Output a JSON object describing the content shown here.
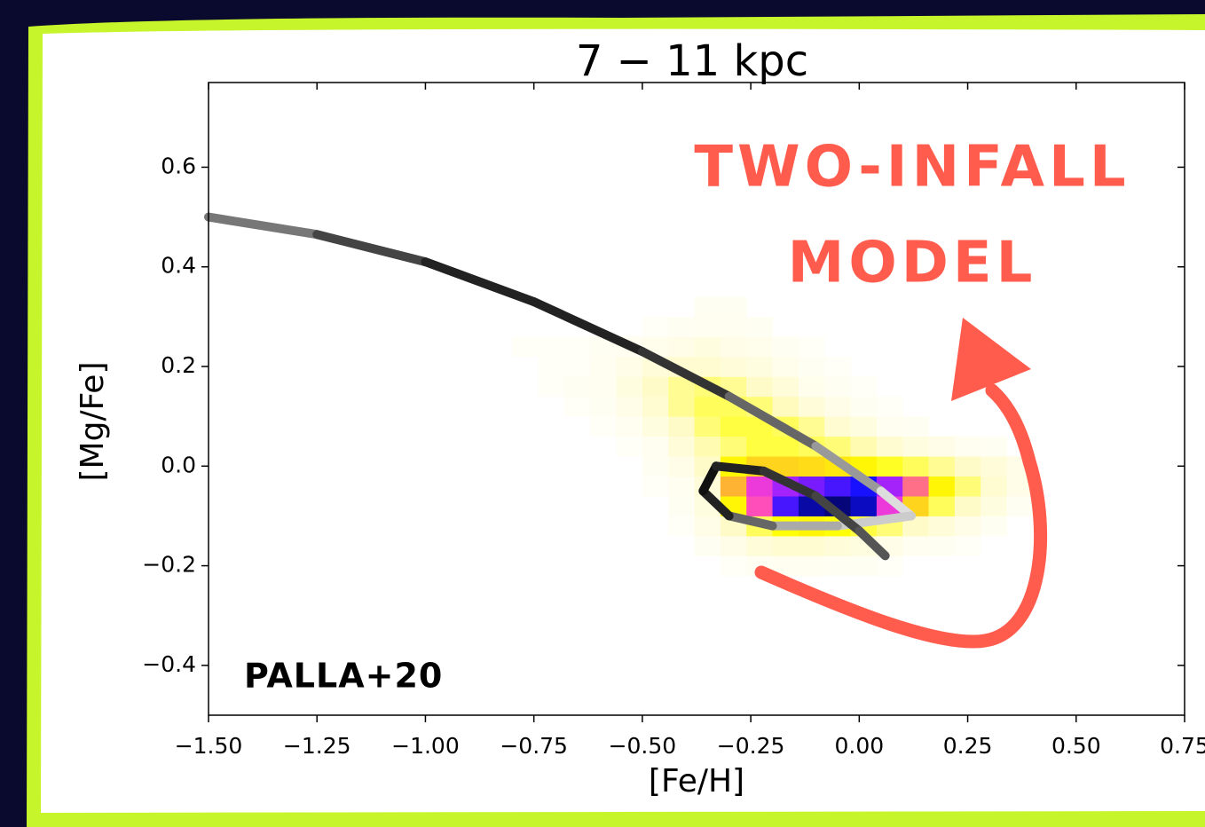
{
  "chart_data": [
    {
      "type": "heatmap",
      "title": "7 − 11 kpc",
      "xlabel": "[Fe/H]",
      "ylabel": "[Mg/Fe]",
      "xlim": [
        -1.5,
        0.75
      ],
      "ylim": [
        -0.5,
        0.77
      ],
      "xticks": [
        {
          "value": -1.5,
          "label": "−1.50"
        },
        {
          "value": -1.25,
          "label": "−1.25"
        },
        {
          "value": -1.0,
          "label": "−1.00"
        },
        {
          "value": -0.75,
          "label": "−0.75"
        },
        {
          "value": -0.5,
          "label": "−0.50"
        },
        {
          "value": -0.25,
          "label": "−0.25"
        },
        {
          "value": 0,
          "label": "0.00"
        },
        {
          "value": 0.25,
          "label": "0.25"
        },
        {
          "value": 0.5,
          "label": "0.50"
        },
        {
          "value": 0.75,
          "label": "0.75"
        }
      ],
      "yticks": [
        {
          "value": -0.4,
          "label": "−0.4"
        },
        {
          "value": -0.2,
          "label": "−0.2"
        },
        {
          "value": 0,
          "label": "0.0"
        },
        0.2,
        0.4,
        0.6
      ],
      "xbins": [
        -0.8,
        -0.74,
        -0.68,
        -0.62,
        -0.56,
        -0.5,
        -0.44,
        -0.38,
        -0.32,
        -0.26,
        -0.2,
        -0.14,
        -0.08,
        -0.02,
        0.04,
        0.1,
        0.16,
        0.22,
        0.28,
        0.34,
        0.4
      ],
      "ybins": [
        -0.22,
        -0.18,
        -0.14,
        -0.1,
        -0.06,
        -0.02,
        0.02,
        0.06,
        0.1,
        0.14,
        0.18,
        0.22,
        0.26,
        0.3,
        0.34
      ],
      "counts": [
        [
          0,
          0,
          0,
          0,
          0,
          0,
          0,
          0,
          2,
          3,
          4,
          4,
          3,
          3,
          2,
          0,
          0,
          0,
          0,
          0
        ],
        [
          0,
          0,
          0,
          0,
          0,
          0,
          0,
          3,
          6,
          10,
          12,
          12,
          10,
          8,
          6,
          4,
          3,
          2,
          0,
          0
        ],
        [
          0,
          0,
          0,
          0,
          0,
          0,
          2,
          6,
          14,
          22,
          28,
          30,
          28,
          24,
          20,
          14,
          10,
          6,
          3,
          0
        ],
        [
          0,
          0,
          0,
          0,
          0,
          0,
          3,
          8,
          30,
          55,
          80,
          92,
          95,
          90,
          60,
          35,
          22,
          14,
          8,
          3
        ],
        [
          0,
          0,
          0,
          0,
          0,
          2,
          4,
          10,
          40,
          60,
          70,
          75,
          80,
          85,
          70,
          50,
          30,
          20,
          12,
          6
        ],
        [
          0,
          0,
          0,
          0,
          0,
          3,
          6,
          14,
          30,
          35,
          35,
          34,
          32,
          30,
          26,
          22,
          18,
          14,
          10,
          6
        ],
        [
          0,
          0,
          0,
          0,
          2,
          4,
          10,
          16,
          20,
          24,
          24,
          22,
          20,
          16,
          12,
          8,
          6,
          4,
          3,
          0
        ],
        [
          0,
          0,
          0,
          2,
          4,
          8,
          14,
          20,
          24,
          24,
          22,
          18,
          12,
          8,
          4,
          3,
          0,
          0,
          0,
          0
        ],
        [
          0,
          0,
          2,
          3,
          6,
          12,
          18,
          22,
          22,
          20,
          15,
          10,
          6,
          3,
          2,
          0,
          0,
          0,
          0,
          0
        ],
        [
          0,
          2,
          3,
          4,
          8,
          14,
          18,
          20,
          18,
          14,
          10,
          5,
          3,
          2,
          0,
          0,
          0,
          0,
          0,
          0
        ],
        [
          0,
          2,
          2,
          4,
          6,
          10,
          12,
          12,
          10,
          8,
          5,
          3,
          2,
          0,
          0,
          0,
          0,
          0,
          0,
          0
        ],
        [
          2,
          2,
          2,
          3,
          4,
          5,
          6,
          8,
          6,
          5,
          3,
          2,
          0,
          0,
          0,
          0,
          0,
          0,
          0,
          0
        ],
        [
          0,
          0,
          0,
          0,
          0,
          2,
          3,
          4,
          4,
          3,
          0,
          0,
          0,
          0,
          0,
          0,
          0,
          0,
          0,
          0
        ],
        [
          0,
          0,
          0,
          0,
          0,
          0,
          0,
          3,
          3,
          0,
          0,
          0,
          0,
          0,
          0,
          0,
          0,
          0,
          0,
          0
        ]
      ],
      "clim": [
        0,
        100
      ],
      "colormap": [
        "#ffffff",
        "#fffbc8",
        "#ffff00",
        "#ffa040",
        "#ff40d0",
        "#9a20ff",
        "#1010ff",
        "#000033"
      ],
      "annotations": [
        "TWO-INFALL",
        "MODEL",
        "PALLA+20"
      ]
    },
    {
      "type": "line",
      "series": [
        {
          "x": [
            -1.5,
            -1.25,
            -1.0,
            -0.75,
            -0.5,
            -0.3,
            -0.1,
            0.05,
            0.12,
            -0.05,
            -0.2,
            -0.3,
            -0.36,
            -0.33,
            -0.22,
            -0.1,
            0.0,
            0.06
          ],
          "values": [
            0.5,
            0.465,
            0.41,
            0.33,
            0.23,
            0.14,
            0.04,
            -0.05,
            -0.1,
            -0.12,
            -0.12,
            -0.1,
            -0.05,
            0.0,
            -0.01,
            -0.06,
            -0.13,
            -0.18
          ],
          "colors": [
            "#aaaaaa",
            "#777777",
            "#444444",
            "#222222",
            "#222222",
            "#333333",
            "#666666",
            "#999999",
            "#dddddd",
            "#cccccc",
            "#aaaaaa",
            "#666666",
            "#222222",
            "#111111",
            "#222222",
            "#333333",
            "#444444",
            "#555555"
          ]
        }
      ]
    }
  ]
}
